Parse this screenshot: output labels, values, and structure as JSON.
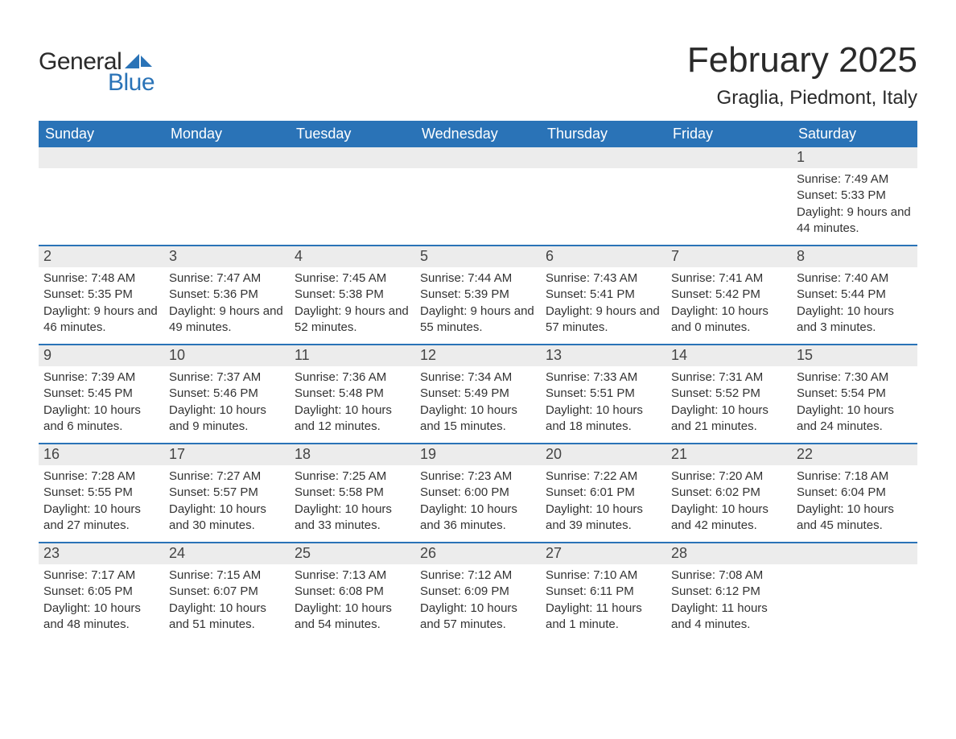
{
  "logo": {
    "text_general": "General",
    "text_blue": "Blue"
  },
  "title": "February 2025",
  "location": "Graglia, Piedmont, Italy",
  "colors": {
    "header_bg": "#2a73b7",
    "header_text": "#ffffff",
    "daynum_bg": "#ececec",
    "week_divider": "#2a73b7",
    "text": "#333333",
    "logo_dark": "#2a2a2a",
    "logo_blue": "#2a73b7"
  },
  "day_names": [
    "Sunday",
    "Monday",
    "Tuesday",
    "Wednesday",
    "Thursday",
    "Friday",
    "Saturday"
  ],
  "weeks": [
    [
      {
        "blank": true
      },
      {
        "blank": true
      },
      {
        "blank": true
      },
      {
        "blank": true
      },
      {
        "blank": true
      },
      {
        "blank": true
      },
      {
        "n": "1",
        "sunrise": "7:49 AM",
        "sunset": "5:33 PM",
        "daylight": "9 hours and 44 minutes."
      }
    ],
    [
      {
        "n": "2",
        "sunrise": "7:48 AM",
        "sunset": "5:35 PM",
        "daylight": "9 hours and 46 minutes."
      },
      {
        "n": "3",
        "sunrise": "7:47 AM",
        "sunset": "5:36 PM",
        "daylight": "9 hours and 49 minutes."
      },
      {
        "n": "4",
        "sunrise": "7:45 AM",
        "sunset": "5:38 PM",
        "daylight": "9 hours and 52 minutes."
      },
      {
        "n": "5",
        "sunrise": "7:44 AM",
        "sunset": "5:39 PM",
        "daylight": "9 hours and 55 minutes."
      },
      {
        "n": "6",
        "sunrise": "7:43 AM",
        "sunset": "5:41 PM",
        "daylight": "9 hours and 57 minutes."
      },
      {
        "n": "7",
        "sunrise": "7:41 AM",
        "sunset": "5:42 PM",
        "daylight": "10 hours and 0 minutes."
      },
      {
        "n": "8",
        "sunrise": "7:40 AM",
        "sunset": "5:44 PM",
        "daylight": "10 hours and 3 minutes."
      }
    ],
    [
      {
        "n": "9",
        "sunrise": "7:39 AM",
        "sunset": "5:45 PM",
        "daylight": "10 hours and 6 minutes."
      },
      {
        "n": "10",
        "sunrise": "7:37 AM",
        "sunset": "5:46 PM",
        "daylight": "10 hours and 9 minutes."
      },
      {
        "n": "11",
        "sunrise": "7:36 AM",
        "sunset": "5:48 PM",
        "daylight": "10 hours and 12 minutes."
      },
      {
        "n": "12",
        "sunrise": "7:34 AM",
        "sunset": "5:49 PM",
        "daylight": "10 hours and 15 minutes."
      },
      {
        "n": "13",
        "sunrise": "7:33 AM",
        "sunset": "5:51 PM",
        "daylight": "10 hours and 18 minutes."
      },
      {
        "n": "14",
        "sunrise": "7:31 AM",
        "sunset": "5:52 PM",
        "daylight": "10 hours and 21 minutes."
      },
      {
        "n": "15",
        "sunrise": "7:30 AM",
        "sunset": "5:54 PM",
        "daylight": "10 hours and 24 minutes."
      }
    ],
    [
      {
        "n": "16",
        "sunrise": "7:28 AM",
        "sunset": "5:55 PM",
        "daylight": "10 hours and 27 minutes."
      },
      {
        "n": "17",
        "sunrise": "7:27 AM",
        "sunset": "5:57 PM",
        "daylight": "10 hours and 30 minutes."
      },
      {
        "n": "18",
        "sunrise": "7:25 AM",
        "sunset": "5:58 PM",
        "daylight": "10 hours and 33 minutes."
      },
      {
        "n": "19",
        "sunrise": "7:23 AM",
        "sunset": "6:00 PM",
        "daylight": "10 hours and 36 minutes."
      },
      {
        "n": "20",
        "sunrise": "7:22 AM",
        "sunset": "6:01 PM",
        "daylight": "10 hours and 39 minutes."
      },
      {
        "n": "21",
        "sunrise": "7:20 AM",
        "sunset": "6:02 PM",
        "daylight": "10 hours and 42 minutes."
      },
      {
        "n": "22",
        "sunrise": "7:18 AM",
        "sunset": "6:04 PM",
        "daylight": "10 hours and 45 minutes."
      }
    ],
    [
      {
        "n": "23",
        "sunrise": "7:17 AM",
        "sunset": "6:05 PM",
        "daylight": "10 hours and 48 minutes."
      },
      {
        "n": "24",
        "sunrise": "7:15 AM",
        "sunset": "6:07 PM",
        "daylight": "10 hours and 51 minutes."
      },
      {
        "n": "25",
        "sunrise": "7:13 AM",
        "sunset": "6:08 PM",
        "daylight": "10 hours and 54 minutes."
      },
      {
        "n": "26",
        "sunrise": "7:12 AM",
        "sunset": "6:09 PM",
        "daylight": "10 hours and 57 minutes."
      },
      {
        "n": "27",
        "sunrise": "7:10 AM",
        "sunset": "6:11 PM",
        "daylight": "11 hours and 1 minute."
      },
      {
        "n": "28",
        "sunrise": "7:08 AM",
        "sunset": "6:12 PM",
        "daylight": "11 hours and 4 minutes."
      },
      {
        "blank": true
      }
    ]
  ]
}
